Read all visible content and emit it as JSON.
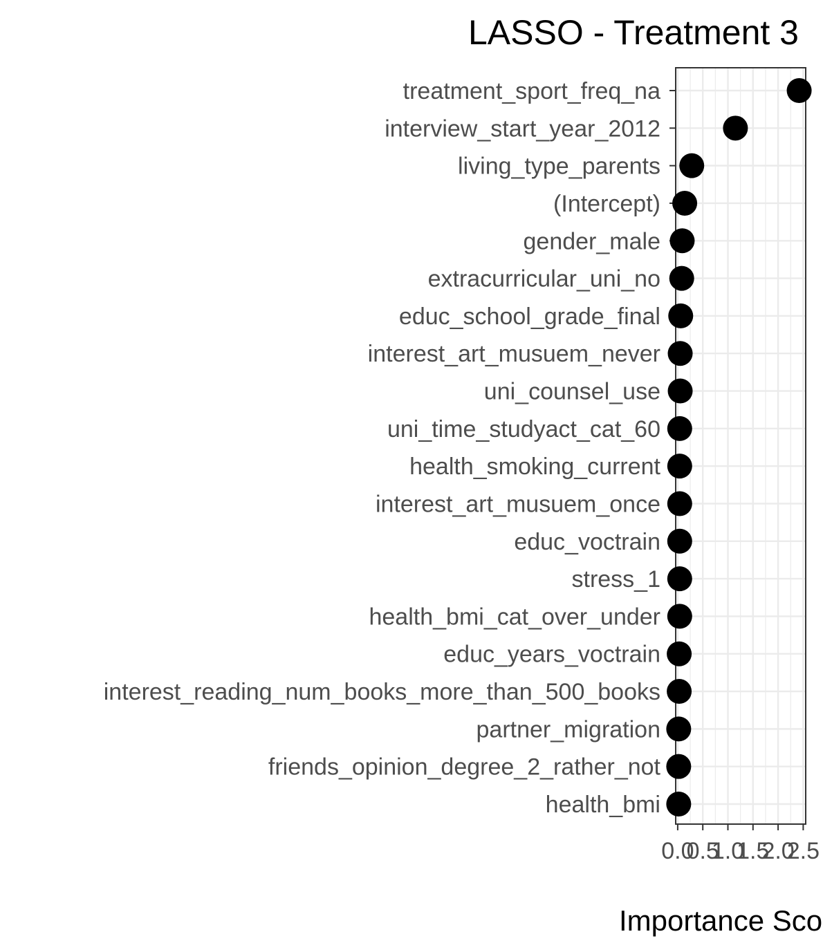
{
  "chart_data": {
    "type": "scatter",
    "title": "LASSO - Treatment 3",
    "xlabel": "Importance Score",
    "ylabel": "",
    "xlim": [
      -0.04,
      2.55
    ],
    "x_ticks": [
      "0.0",
      "0.5",
      "1.0",
      "1.5",
      "2.0",
      "2.5"
    ],
    "x_tick_values": [
      0.0,
      0.5,
      1.0,
      1.5,
      2.0,
      2.5
    ],
    "grid": true,
    "point_color": "#000000",
    "panel_border_color": "#333333",
    "grid_color": "#ebebeb",
    "points": [
      {
        "label": "treatment_sport_freq_na",
        "value": 2.42
      },
      {
        "label": "interview_start_year_2012",
        "value": 1.15
      },
      {
        "label": "living_type_parents",
        "value": 0.28
      },
      {
        "label": "(Intercept)",
        "value": 0.14
      },
      {
        "label": "gender_male",
        "value": 0.09
      },
      {
        "label": "extracurricular_uni_no",
        "value": 0.08
      },
      {
        "label": "educ_school_grade_final",
        "value": 0.06
      },
      {
        "label": "interest_art_musuem_never",
        "value": 0.05
      },
      {
        "label": "uni_counsel_use",
        "value": 0.05
      },
      {
        "label": "uni_time_studyact_cat_60",
        "value": 0.04
      },
      {
        "label": "health_smoking_current",
        "value": 0.04
      },
      {
        "label": "interest_art_musuem_once",
        "value": 0.04
      },
      {
        "label": "educ_voctrain",
        "value": 0.04
      },
      {
        "label": "stress_1",
        "value": 0.04
      },
      {
        "label": "health_bmi_cat_over_under",
        "value": 0.04
      },
      {
        "label": "educ_years_voctrain",
        "value": 0.03
      },
      {
        "label": "interest_reading_num_books_more_than_500_books",
        "value": 0.03
      },
      {
        "label": "partner_migration",
        "value": 0.02
      },
      {
        "label": "friends_opinion_degree_2_rather_not",
        "value": 0.02
      },
      {
        "label": "health_bmi",
        "value": 0.02
      }
    ]
  }
}
